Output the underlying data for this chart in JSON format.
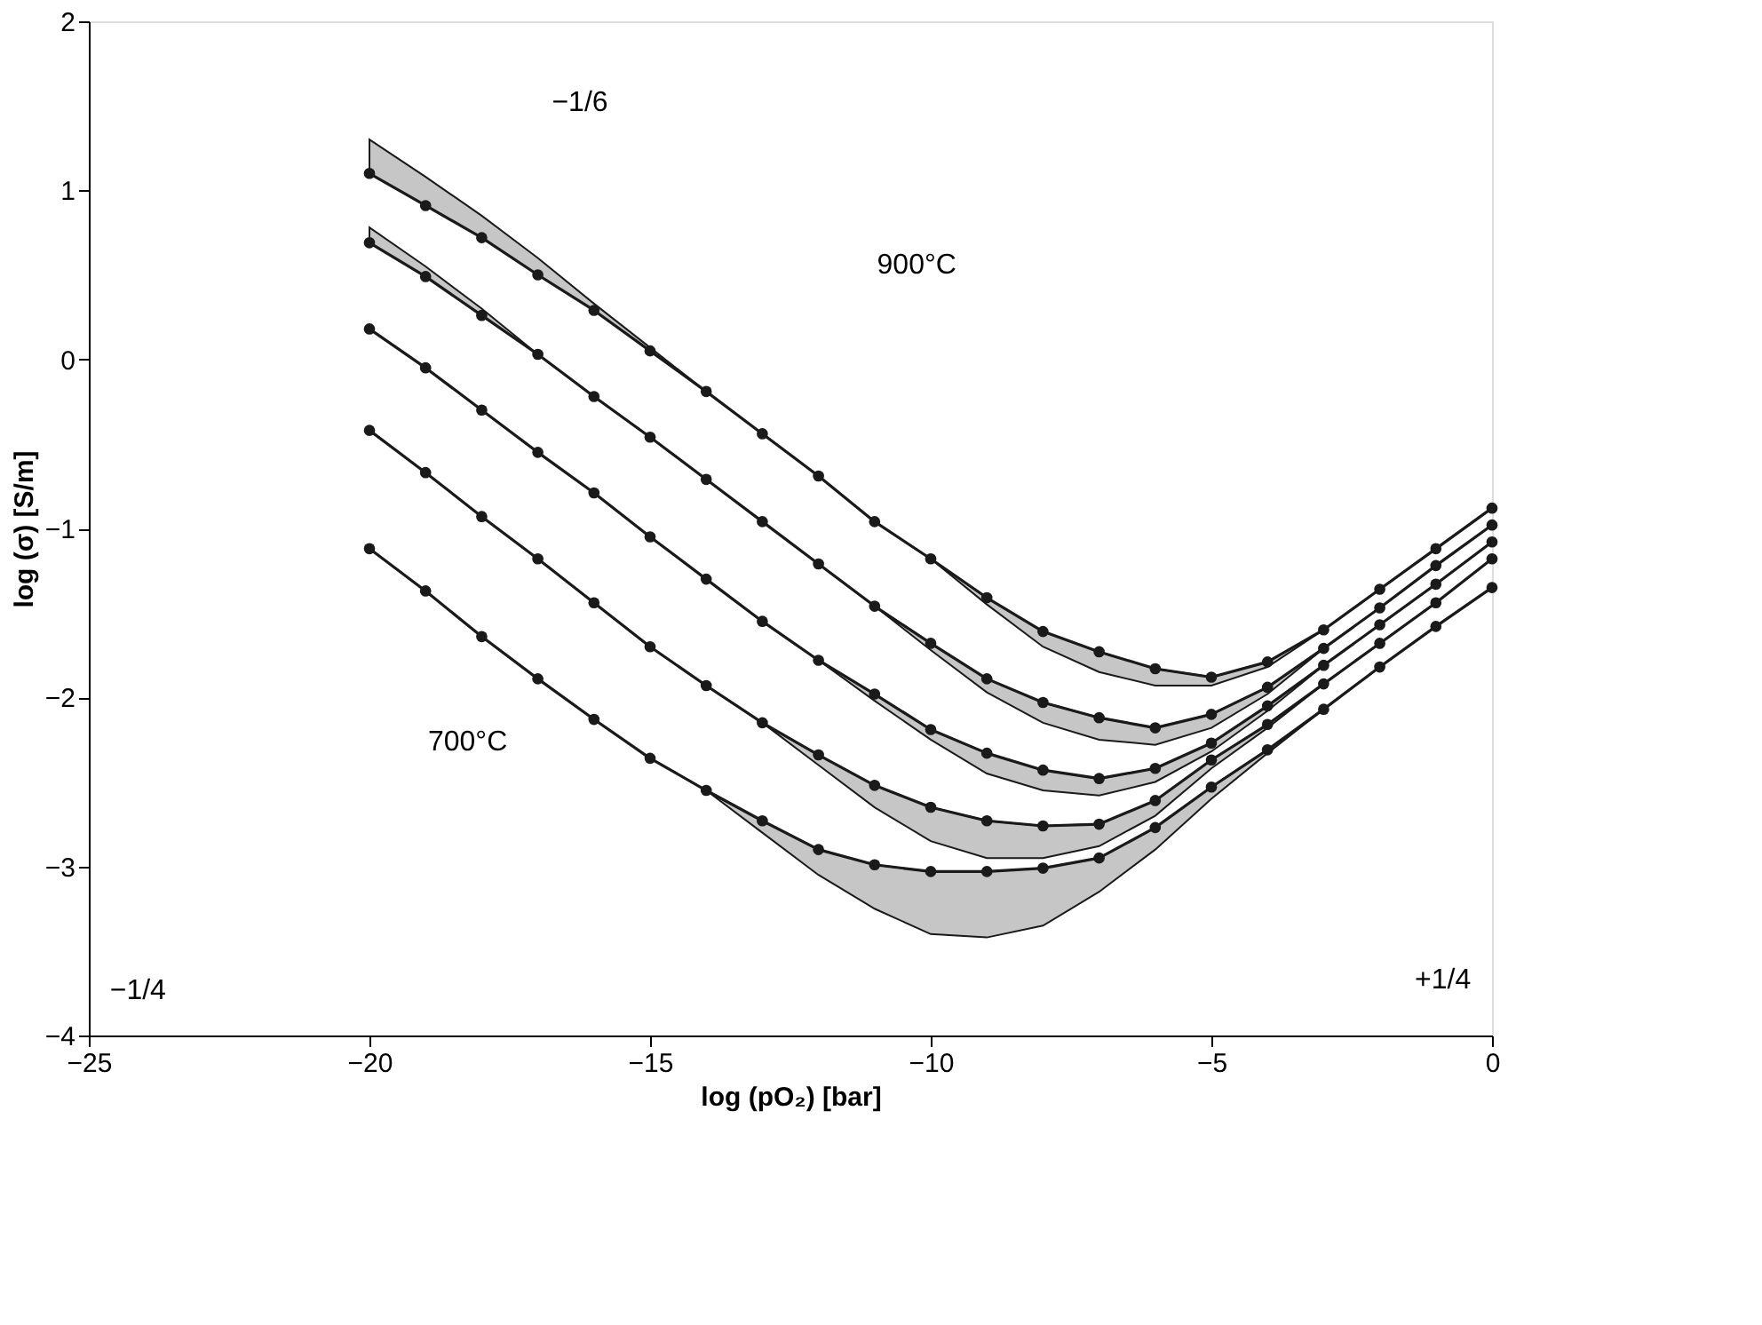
{
  "chart_data": {
    "type": "line",
    "xlabel": "log (pO₂) [bar]",
    "ylabel": "log (σ) [S/m]",
    "x": [
      -20,
      -19,
      -18,
      -17,
      -16,
      -15,
      -14,
      -13,
      -12,
      -11,
      -10,
      -9,
      -8,
      -7,
      -6,
      -5,
      -4,
      -3,
      -2,
      -1,
      0
    ],
    "series": [
      {
        "color": "#1a1a1a",
        "values": [
          1.1,
          0.91,
          0.72,
          0.5,
          0.29,
          0.05,
          -0.19,
          -0.44,
          -0.69,
          -0.96,
          -1.18,
          -1.41,
          -1.61,
          -1.73,
          -1.83,
          -1.88,
          -1.79,
          -1.6,
          -1.36,
          -1.12,
          -0.88
        ],
        "upper": [
          1.3,
          1.08,
          0.85,
          0.6,
          0.33,
          0.07,
          -0.19,
          -0.44,
          -0.69,
          -0.96,
          -1.18,
          -1.41,
          -1.61,
          -1.73,
          -1.83,
          -1.88,
          -1.79,
          -1.6,
          -1.36,
          -1.12,
          -0.88
        ],
        "lower": [
          1.1,
          0.91,
          0.72,
          0.5,
          0.29,
          0.05,
          -0.19,
          -0.44,
          -0.69,
          -0.96,
          -1.18,
          -1.45,
          -1.7,
          -1.85,
          -1.93,
          -1.93,
          -1.82,
          -1.6,
          -1.36,
          -1.12,
          -0.88
        ]
      },
      {
        "color": "#1a1a1a",
        "values": [
          0.69,
          0.49,
          0.26,
          0.03,
          -0.22,
          -0.46,
          -0.71,
          -0.96,
          -1.21,
          -1.46,
          -1.68,
          -1.89,
          -2.03,
          -2.12,
          -2.18,
          -2.1,
          -1.94,
          -1.71,
          -1.47,
          -1.22,
          -0.98
        ],
        "upper": [
          0.78,
          0.55,
          0.3,
          0.03,
          -0.22,
          -0.46,
          -0.71,
          -0.96,
          -1.21,
          -1.46,
          -1.68,
          -1.89,
          -2.03,
          -2.12,
          -2.18,
          -2.1,
          -1.94,
          -1.71,
          -1.47,
          -1.22,
          -0.98
        ],
        "lower": [
          0.69,
          0.49,
          0.26,
          0.03,
          -0.22,
          -0.46,
          -0.71,
          -0.96,
          -1.21,
          -1.46,
          -1.72,
          -1.97,
          -2.15,
          -2.25,
          -2.28,
          -2.18,
          -1.98,
          -1.71,
          -1.47,
          -1.22,
          -0.98
        ]
      },
      {
        "color": "#1a1a1a",
        "values": [
          0.18,
          -0.05,
          -0.3,
          -0.55,
          -0.79,
          -1.05,
          -1.3,
          -1.55,
          -1.78,
          -1.98,
          -2.19,
          -2.33,
          -2.43,
          -2.48,
          -2.42,
          -2.27,
          -2.05,
          -1.81,
          -1.57,
          -1.33,
          -1.08
        ],
        "upper": [
          0.18,
          -0.05,
          -0.3,
          -0.55,
          -0.79,
          -1.05,
          -1.3,
          -1.55,
          -1.78,
          -1.98,
          -2.19,
          -2.33,
          -2.43,
          -2.48,
          -2.42,
          -2.27,
          -2.05,
          -1.81,
          -1.57,
          -1.33,
          -1.08
        ],
        "lower": [
          0.18,
          -0.05,
          -0.3,
          -0.55,
          -0.79,
          -1.05,
          -1.3,
          -1.55,
          -1.78,
          -2.02,
          -2.25,
          -2.45,
          -2.55,
          -2.58,
          -2.5,
          -2.32,
          -2.08,
          -1.81,
          -1.57,
          -1.33,
          -1.08
        ]
      },
      {
        "color": "#1a1a1a",
        "values": [
          -0.42,
          -0.67,
          -0.93,
          -1.18,
          -1.44,
          -1.7,
          -1.93,
          -2.15,
          -2.34,
          -2.52,
          -2.65,
          -2.73,
          -2.76,
          -2.75,
          -2.61,
          -2.37,
          -2.16,
          -1.92,
          -1.68,
          -1.44,
          -1.18
        ],
        "upper": [
          -0.42,
          -0.67,
          -0.93,
          -1.18,
          -1.44,
          -1.7,
          -1.93,
          -2.15,
          -2.34,
          -2.52,
          -2.65,
          -2.73,
          -2.76,
          -2.75,
          -2.61,
          -2.37,
          -2.16,
          -1.92,
          -1.68,
          -1.44,
          -1.18
        ],
        "lower": [
          -0.42,
          -0.67,
          -0.93,
          -1.18,
          -1.44,
          -1.7,
          -1.93,
          -2.15,
          -2.4,
          -2.65,
          -2.85,
          -2.95,
          -2.95,
          -2.88,
          -2.7,
          -2.42,
          -2.18,
          -1.92,
          -1.68,
          -1.44,
          -1.18
        ]
      },
      {
        "color": "#1a1a1a",
        "values": [
          -1.12,
          -1.37,
          -1.64,
          -1.89,
          -2.13,
          -2.36,
          -2.55,
          -2.73,
          -2.9,
          -2.99,
          -3.03,
          -3.03,
          -3.01,
          -2.95,
          -2.77,
          -2.53,
          -2.31,
          -2.07,
          -1.82,
          -1.58,
          -1.35
        ],
        "upper": [
          -1.12,
          -1.37,
          -1.64,
          -1.89,
          -2.13,
          -2.36,
          -2.55,
          -2.73,
          -2.9,
          -2.99,
          -3.03,
          -3.03,
          -3.01,
          -2.95,
          -2.77,
          -2.53,
          -2.31,
          -2.07,
          -1.82,
          -1.58,
          -1.35
        ],
        "lower": [
          -1.12,
          -1.37,
          -1.64,
          -1.89,
          -2.13,
          -2.36,
          -2.55,
          -2.8,
          -3.05,
          -3.25,
          -3.4,
          -3.42,
          -3.35,
          -3.15,
          -2.9,
          -2.6,
          -2.33,
          -2.07,
          -1.82,
          -1.58,
          -1.35
        ]
      }
    ],
    "xlim": [
      -25,
      0
    ],
    "xticks": [
      -25,
      -20,
      -15,
      -10,
      -5,
      0
    ],
    "ylim": [
      -4,
      2
    ],
    "yticks": [
      -4,
      -3,
      -2,
      -1,
      0,
      1,
      2
    ],
    "annotations": [
      "900°C",
      "700°C",
      "−1/6",
      "−1/4",
      "+1/4"
    ],
    "grid": false,
    "marker": "circle",
    "line_style": "solid",
    "legend": false
  }
}
